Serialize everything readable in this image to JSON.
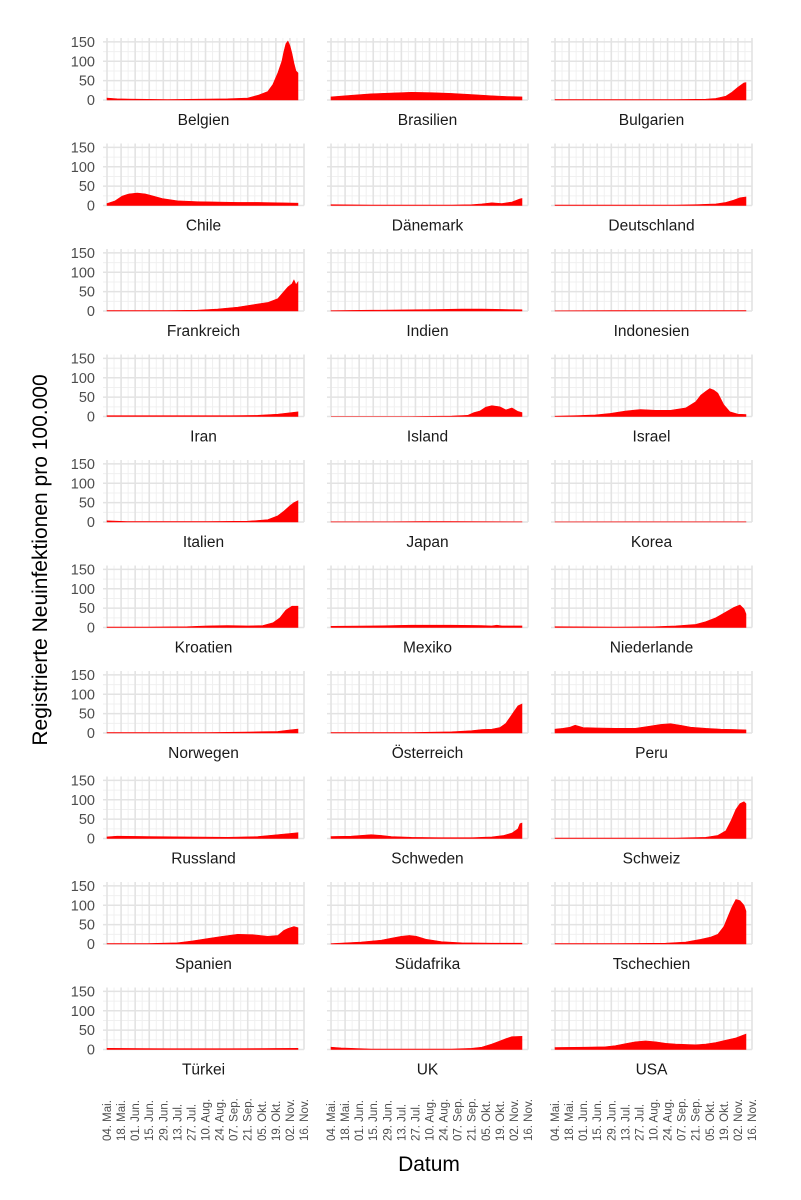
{
  "chart_data": {
    "type": "area",
    "layout": "facet-grid 3 columns x 10 rows",
    "xlabel": "Datum",
    "ylabel": "Registrierte Neuinfektionen pro 100.000",
    "ylim": [
      0,
      160
    ],
    "yticks": [
      0,
      50,
      100,
      150
    ],
    "x_tick_labels": [
      "04. Mai.",
      "18. Mai.",
      "01. Jun.",
      "15. Jun.",
      "29. Jun.",
      "13. Jul.",
      "27. Jul.",
      "10. Aug.",
      "24. Aug.",
      "07. Sep.",
      "21. Sep.",
      "05. Okt.",
      "19. Okt.",
      "02. Nov.",
      "16. Nov."
    ],
    "x_index_note": "x values are day indices counted from 04. Mai.; ticks every 14 days (0..196)",
    "xlim": [
      -4,
      196
    ],
    "fill_color": "#ff0000",
    "grid": true,
    "panels": [
      {
        "name": "Belgien",
        "x": [
          0,
          10,
          30,
          60,
          90,
          120,
          140,
          150,
          160,
          165,
          170,
          174,
          176,
          178,
          180,
          182,
          184,
          186,
          188,
          190
        ],
        "y": [
          5,
          3,
          2,
          1,
          2,
          3,
          5,
          12,
          22,
          40,
          70,
          100,
          125,
          145,
          152,
          140,
          120,
          95,
          75,
          70
        ]
      },
      {
        "name": "Brasilien",
        "x": [
          0,
          20,
          40,
          60,
          80,
          100,
          120,
          140,
          160,
          175,
          190
        ],
        "y": [
          8,
          12,
          16,
          18,
          20,
          19,
          17,
          14,
          11,
          9,
          8
        ]
      },
      {
        "name": "Bulgarien",
        "x": [
          0,
          40,
          80,
          120,
          150,
          160,
          170,
          176,
          182,
          188,
          190
        ],
        "y": [
          1,
          1,
          1,
          1,
          2,
          4,
          10,
          20,
          33,
          44,
          45
        ]
      },
      {
        "name": "Chile",
        "x": [
          0,
          8,
          15,
          22,
          30,
          38,
          45,
          55,
          70,
          90,
          110,
          130,
          150,
          170,
          190
        ],
        "y": [
          5,
          12,
          24,
          30,
          32,
          30,
          25,
          18,
          12,
          10,
          9,
          8,
          8,
          7,
          6
        ]
      },
      {
        "name": "Dänemark",
        "x": [
          0,
          40,
          80,
          120,
          140,
          150,
          160,
          170,
          180,
          188,
          190
        ],
        "y": [
          2,
          1,
          1,
          1,
          2,
          4,
          7,
          5,
          9,
          17,
          18
        ]
      },
      {
        "name": "Deutschland",
        "x": [
          0,
          40,
          80,
          120,
          140,
          160,
          170,
          178,
          184,
          190
        ],
        "y": [
          1,
          1,
          1,
          1,
          2,
          4,
          8,
          14,
          20,
          22
        ]
      },
      {
        "name": "Frankreich",
        "x": [
          0,
          30,
          60,
          90,
          110,
          130,
          145,
          160,
          170,
          176,
          180,
          184,
          186,
          188,
          190
        ],
        "y": [
          1,
          1,
          1,
          2,
          5,
          10,
          16,
          22,
          32,
          50,
          62,
          70,
          80,
          68,
          75
        ]
      },
      {
        "name": "Indien",
        "x": [
          0,
          40,
          80,
          110,
          130,
          150,
          170,
          190
        ],
        "y": [
          1,
          2,
          3,
          4,
          5,
          5,
          4,
          3
        ]
      },
      {
        "name": "Indonesien",
        "x": [
          0,
          60,
          120,
          190
        ],
        "y": [
          0.5,
          1,
          1,
          1
        ]
      },
      {
        "name": "Iran",
        "x": [
          0,
          40,
          80,
          120,
          150,
          170,
          190
        ],
        "y": [
          2,
          2,
          2,
          2,
          3,
          6,
          12
        ]
      },
      {
        "name": "Island",
        "x": [
          0,
          40,
          80,
          120,
          136,
          142,
          148,
          154,
          160,
          168,
          174,
          180,
          186,
          190
        ],
        "y": [
          0,
          0,
          0,
          1,
          3,
          10,
          14,
          24,
          28,
          25,
          17,
          22,
          13,
          10
        ]
      },
      {
        "name": "Israel",
        "x": [
          0,
          20,
          40,
          55,
          70,
          85,
          100,
          115,
          130,
          140,
          145,
          150,
          154,
          158,
          162,
          168,
          174,
          182,
          190
        ],
        "y": [
          1,
          2,
          4,
          8,
          14,
          18,
          16,
          16,
          22,
          38,
          55,
          65,
          72,
          68,
          60,
          30,
          12,
          6,
          5
        ]
      },
      {
        "name": "Italien",
        "x": [
          0,
          20,
          50,
          100,
          140,
          160,
          170,
          176,
          182,
          186,
          190
        ],
        "y": [
          3,
          1,
          1,
          1,
          2,
          6,
          16,
          28,
          42,
          50,
          55
        ]
      },
      {
        "name": "Japan",
        "x": [
          0,
          60,
          90,
          120,
          190
        ],
        "y": [
          0.5,
          0.5,
          1,
          1,
          0.5
        ]
      },
      {
        "name": "Korea",
        "x": [
          0,
          100,
          190
        ],
        "y": [
          0.3,
          0.4,
          0.5
        ]
      },
      {
        "name": "Kroatien",
        "x": [
          0,
          40,
          80,
          100,
          120,
          140,
          155,
          165,
          172,
          178,
          184,
          190
        ],
        "y": [
          1,
          1,
          2,
          4,
          5,
          4,
          5,
          12,
          25,
          45,
          55,
          55
        ]
      },
      {
        "name": "Mexiko",
        "x": [
          0,
          40,
          80,
          120,
          150,
          160,
          165,
          170,
          190
        ],
        "y": [
          3,
          4,
          6,
          6,
          5,
          4,
          6,
          4,
          4
        ]
      },
      {
        "name": "Niederlande",
        "x": [
          0,
          60,
          100,
          120,
          140,
          150,
          160,
          170,
          178,
          184,
          188,
          190
        ],
        "y": [
          2,
          1,
          2,
          4,
          8,
          15,
          25,
          40,
          52,
          58,
          48,
          35
        ]
      },
      {
        "name": "Norwegen",
        "x": [
          0,
          60,
          100,
          130,
          150,
          170,
          182,
          190
        ],
        "y": [
          1,
          1,
          1,
          2,
          3,
          4,
          8,
          10
        ]
      },
      {
        "name": "Österreich",
        "x": [
          0,
          40,
          80,
          120,
          140,
          150,
          160,
          168,
          174,
          178,
          182,
          186,
          190
        ],
        "y": [
          1,
          1,
          1,
          3,
          6,
          9,
          10,
          14,
          25,
          40,
          55,
          70,
          75
        ]
      },
      {
        "name": "Peru",
        "x": [
          0,
          8,
          15,
          20,
          28,
          40,
          60,
          80,
          95,
          105,
          115,
          125,
          135,
          150,
          165,
          180,
          190
        ],
        "y": [
          10,
          12,
          15,
          20,
          14,
          13,
          12,
          12,
          18,
          22,
          24,
          20,
          15,
          12,
          10,
          9,
          8
        ]
      },
      {
        "name": "Russland",
        "x": [
          0,
          10,
          40,
          80,
          120,
          150,
          170,
          190
        ],
        "y": [
          4,
          6,
          5,
          4,
          3,
          5,
          10,
          15
        ]
      },
      {
        "name": "Schweden",
        "x": [
          0,
          20,
          30,
          40,
          50,
          60,
          80,
          110,
          140,
          160,
          172,
          180,
          186,
          188,
          190
        ],
        "y": [
          5,
          6,
          8,
          10,
          8,
          5,
          3,
          2,
          2,
          4,
          8,
          14,
          25,
          38,
          40
        ]
      },
      {
        "name": "Schweiz",
        "x": [
          0,
          60,
          120,
          150,
          162,
          170,
          175,
          180,
          184,
          188,
          190
        ],
        "y": [
          1,
          1,
          1,
          3,
          8,
          20,
          45,
          75,
          90,
          95,
          90
        ]
      },
      {
        "name": "Spanien",
        "x": [
          0,
          40,
          70,
          85,
          100,
          115,
          130,
          145,
          160,
          170,
          176,
          180,
          186,
          190
        ],
        "y": [
          1,
          1,
          3,
          8,
          14,
          20,
          25,
          24,
          20,
          22,
          35,
          40,
          45,
          42
        ]
      },
      {
        "name": "Südafrika",
        "x": [
          0,
          30,
          50,
          60,
          70,
          78,
          85,
          95,
          110,
          130,
          160,
          190
        ],
        "y": [
          1,
          5,
          10,
          15,
          20,
          22,
          20,
          12,
          6,
          3,
          2,
          2
        ]
      },
      {
        "name": "Tschechien",
        "x": [
          0,
          60,
          110,
          130,
          145,
          155,
          162,
          168,
          172,
          176,
          180,
          184,
          188,
          190
        ],
        "y": [
          1,
          1,
          2,
          5,
          12,
          18,
          25,
          45,
          70,
          95,
          115,
          112,
          100,
          85
        ]
      },
      {
        "name": "Türkei",
        "x": [
          0,
          60,
          120,
          190
        ],
        "y": [
          3,
          2,
          2,
          3
        ]
      },
      {
        "name": "UK",
        "x": [
          0,
          10,
          40,
          80,
          120,
          140,
          150,
          160,
          168,
          174,
          180,
          190
        ],
        "y": [
          6,
          4,
          1,
          1,
          1,
          3,
          6,
          14,
          22,
          28,
          33,
          34
        ]
      },
      {
        "name": "USA",
        "x": [
          0,
          30,
          50,
          60,
          70,
          80,
          90,
          100,
          110,
          120,
          140,
          150,
          160,
          170,
          180,
          190
        ],
        "y": [
          5,
          6,
          7,
          10,
          15,
          20,
          22,
          20,
          16,
          14,
          12,
          14,
          18,
          24,
          30,
          40
        ]
      }
    ]
  }
}
